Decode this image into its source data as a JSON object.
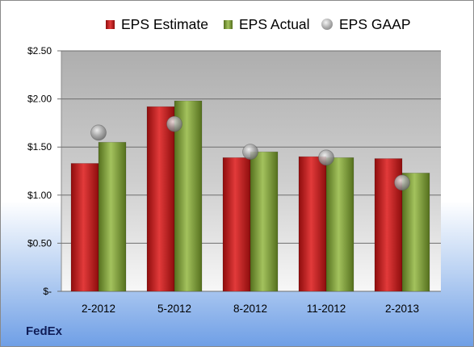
{
  "chart_data": {
    "type": "bar",
    "categories": [
      "2-2012",
      "5-2012",
      "8-2012",
      "11-2012",
      "2-2013"
    ],
    "series": [
      {
        "name": "EPS Estimate",
        "kind": "bar",
        "color": "#c41f1f",
        "values": [
          1.33,
          1.92,
          1.39,
          1.4,
          1.38
        ]
      },
      {
        "name": "EPS Actual",
        "kind": "bar",
        "color": "#8aab45",
        "values": [
          1.55,
          1.98,
          1.45,
          1.39,
          1.23
        ]
      },
      {
        "name": "EPS GAAP",
        "kind": "marker",
        "color": "#a8a8a8",
        "values": [
          1.65,
          1.74,
          1.45,
          1.39,
          1.13
        ]
      }
    ],
    "ylim": [
      0,
      2.5
    ],
    "yticks": [
      0,
      0.5,
      1.0,
      1.5,
      2.0,
      2.5
    ],
    "ytick_labels": [
      "$-",
      "$0.50",
      "$1.00",
      "$1.50",
      "$2.00",
      "$2.50"
    ],
    "grid": true,
    "legend_position": "top"
  },
  "footer": {
    "company": "FedEx"
  }
}
